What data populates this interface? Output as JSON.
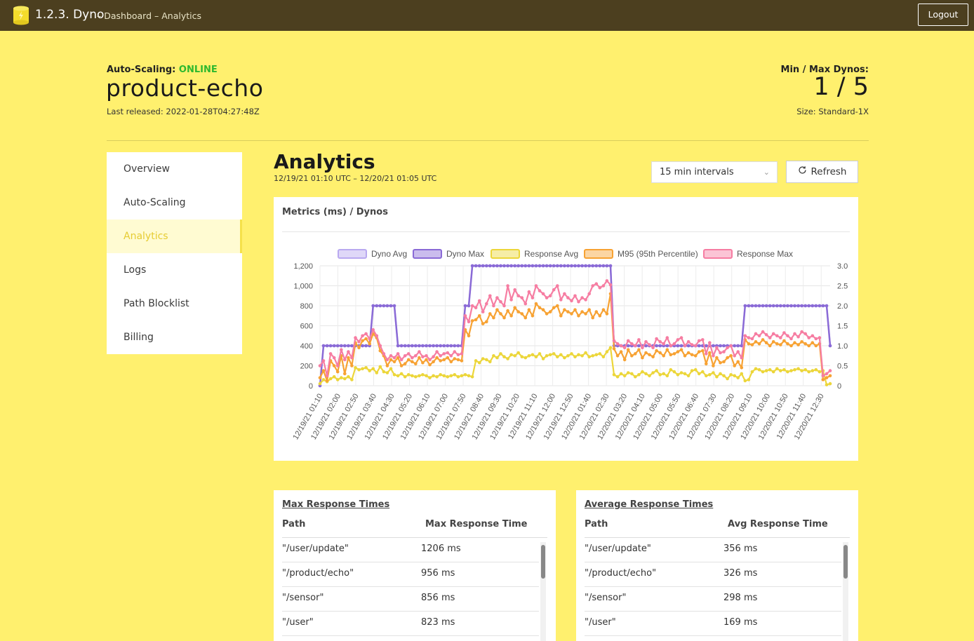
{
  "topbar": {
    "app_title": "1.2.3. Dyno",
    "breadcrumb": "– Dashboard – Analytics",
    "logout_label": "Logout"
  },
  "header": {
    "autoscaling_label": "Auto-Scaling:",
    "autoscaling_status": "ONLINE",
    "app_name": "product-echo",
    "last_released": "Last released: 2022-01-28T04:27:48Z",
    "dynos_label": "Min / Max Dynos:",
    "dynos_value": "1 / 5",
    "size": "Size: Standard-1X"
  },
  "sidebar": {
    "items": [
      {
        "label": "Overview"
      },
      {
        "label": "Auto-Scaling"
      },
      {
        "label": "Analytics"
      },
      {
        "label": "Logs"
      },
      {
        "label": "Path Blocklist"
      },
      {
        "label": "Billing"
      }
    ],
    "active": "Analytics"
  },
  "analytics": {
    "title": "Analytics",
    "range": "12/19/21 01:10 UTC  –  12/20/21 01:05 UTC",
    "interval_select": "15 min intervals",
    "refresh_label": "Refresh"
  },
  "chart_title": "Metrics (ms) / Dynos",
  "chart_data": {
    "type": "line",
    "x_tick_labels": [
      "12/19/21 01:10",
      "12/19/21 02:00",
      "12/19/21 02:50",
      "12/19/21 03:40",
      "12/19/21 04:30",
      "12/19/21 05:20",
      "12/19/21 06:10",
      "12/19/21 07:00",
      "12/19/21 07:50",
      "12/19/21 08:40",
      "12/19/21 09:30",
      "12/19/21 10:20",
      "12/19/21 11:10",
      "12/19/21 12:00",
      "12/19/21 12:50",
      "12/20/21 01:40",
      "12/20/21 02:30",
      "12/20/21 03:20",
      "12/20/21 04:10",
      "12/20/21 05:00",
      "12/20/21 05:50",
      "12/20/21 06:40",
      "12/20/21 07:30",
      "12/20/21 08:20",
      "12/20/21 09:10",
      "12/20/21 10:00",
      "12/20/21 10:50",
      "12/20/21 11:40",
      "12/20/21 12:30"
    ],
    "y_left": {
      "min": 0,
      "max": 1200,
      "ticks": [
        "0",
        "200",
        "400",
        "600",
        "800",
        "1,000",
        "1,200"
      ]
    },
    "y_right": {
      "min": 0,
      "max": 3.0,
      "ticks": [
        "0",
        "0.5",
        "1.0",
        "1.5",
        "2.0",
        "2.5",
        "3.0"
      ]
    },
    "series": [
      {
        "name": "Dyno Avg",
        "color": "#b9a9f0",
        "axis": "right",
        "values": [
          0,
          1,
          1,
          1,
          1,
          1,
          1,
          1,
          1,
          1,
          1,
          1,
          1,
          1,
          1,
          2,
          2,
          2,
          2,
          2,
          2,
          2,
          1,
          1,
          1,
          1,
          1,
          1,
          1,
          1,
          1,
          1,
          1,
          1,
          1,
          1,
          1,
          1,
          1,
          1,
          1,
          2,
          2,
          3,
          3,
          3,
          3,
          3,
          3,
          3,
          3,
          3,
          3,
          3,
          3,
          3,
          3,
          3,
          3,
          3,
          3,
          3,
          3,
          3,
          3,
          3,
          3,
          3,
          3,
          3,
          3,
          3,
          3,
          3,
          3,
          3,
          3,
          3,
          3,
          3,
          3,
          3,
          3,
          1,
          1,
          1,
          1,
          1,
          1,
          1,
          1,
          1,
          1,
          1,
          1,
          1,
          1,
          1,
          1,
          1,
          1,
          1,
          1,
          1,
          1,
          1,
          1,
          1,
          1,
          1,
          1,
          1,
          1,
          1,
          1,
          1,
          1,
          1,
          1,
          1,
          2,
          2,
          2,
          2,
          2,
          2,
          2,
          2,
          2,
          2,
          2,
          2,
          2,
          2,
          2,
          2,
          2,
          2,
          2,
          2,
          2,
          2,
          2,
          2,
          1
        ]
      },
      {
        "name": "Dyno Max",
        "color": "#8a6ad6",
        "axis": "right",
        "values": [
          0,
          1,
          1,
          1,
          1,
          1,
          1,
          1,
          1,
          1,
          1,
          1,
          1,
          1,
          1,
          2,
          2,
          2,
          2,
          2,
          2,
          2,
          1,
          1,
          1,
          1,
          1,
          1,
          1,
          1,
          1,
          1,
          1,
          1,
          1,
          1,
          1,
          1,
          1,
          1,
          1,
          2,
          2,
          3,
          3,
          3,
          3,
          3,
          3,
          3,
          3,
          3,
          3,
          3,
          3,
          3,
          3,
          3,
          3,
          3,
          3,
          3,
          3,
          3,
          3,
          3,
          3,
          3,
          3,
          3,
          3,
          3,
          3,
          3,
          3,
          3,
          3,
          3,
          3,
          3,
          3,
          3,
          3,
          1,
          1,
          1,
          1,
          1,
          1,
          1,
          1,
          1,
          1,
          1,
          1,
          1,
          1,
          1,
          1,
          1,
          1,
          1,
          1,
          1,
          1,
          1,
          1,
          1,
          1,
          1,
          1,
          1,
          1,
          1,
          1,
          1,
          1,
          1,
          1,
          1,
          2,
          2,
          2,
          2,
          2,
          2,
          2,
          2,
          2,
          2,
          2,
          2,
          2,
          2,
          2,
          2,
          2,
          2,
          2,
          2,
          2,
          2,
          2,
          2,
          1
        ]
      },
      {
        "name": "Response Avg",
        "color": "#ecd63a",
        "axis": "left",
        "values": [
          20,
          60,
          40,
          70,
          90,
          60,
          80,
          70,
          90,
          60,
          180,
          160,
          170,
          180,
          150,
          170,
          130,
          190,
          140,
          130,
          170,
          110,
          100,
          120,
          90,
          110,
          100,
          90,
          100,
          110,
          100,
          80,
          100,
          90,
          110,
          100,
          90,
          100,
          110,
          90,
          100,
          110,
          100,
          90,
          250,
          230,
          270,
          260,
          240,
          300,
          280,
          320,
          290,
          270,
          310,
          300,
          330,
          290,
          280,
          300,
          310,
          290,
          320,
          270,
          300,
          310,
          320,
          290,
          310,
          280,
          300,
          320,
          290,
          310,
          300,
          330,
          290,
          300,
          310,
          320,
          290,
          340,
          380,
          110,
          90,
          120,
          100,
          130,
          120,
          90,
          110,
          140,
          120,
          100,
          130,
          150,
          110,
          120,
          100,
          160,
          140,
          110,
          130,
          120,
          100,
          150,
          160,
          120,
          140,
          100,
          110,
          130,
          90,
          120,
          100,
          70,
          110,
          100,
          80,
          120,
          50,
          60,
          140,
          170,
          160,
          140,
          150,
          160,
          140,
          170,
          150,
          160,
          140,
          150,
          160,
          170,
          150,
          160,
          140,
          150,
          160,
          140,
          150,
          10,
          20
        ]
      },
      {
        "name": "M95 (95th Percentile)",
        "color": "#f7a233",
        "axis": "left",
        "values": [
          80,
          150,
          50,
          250,
          200,
          140,
          300,
          120,
          280,
          200,
          430,
          380,
          450,
          470,
          420,
          520,
          480,
          350,
          300,
          200,
          260,
          240,
          280,
          200,
          220,
          260,
          240,
          220,
          280,
          230,
          260,
          210,
          240,
          280,
          250,
          260,
          280,
          240,
          270,
          260,
          250,
          560,
          500,
          650,
          660,
          700,
          620,
          640,
          720,
          680,
          760,
          720,
          680,
          750,
          700,
          780,
          740,
          720,
          680,
          760,
          700,
          820,
          780,
          760,
          720,
          740,
          780,
          800,
          700,
          760,
          740,
          720,
          760,
          700,
          740,
          720,
          760,
          680,
          740,
          700,
          760,
          720,
          920,
          370,
          300,
          340,
          260,
          360,
          300,
          320,
          360,
          280,
          330,
          310,
          290,
          350,
          330,
          300,
          360,
          310,
          320,
          340,
          360,
          300,
          330,
          310,
          300,
          340,
          350,
          220,
          330,
          200,
          280,
          230,
          240,
          280,
          300,
          200,
          240,
          180,
          460,
          420,
          410,
          440,
          420,
          460,
          430,
          400,
          440,
          420,
          410,
          450,
          420,
          400,
          430,
          410,
          440,
          420,
          400,
          430,
          400,
          420,
          60,
          80,
          100
        ]
      },
      {
        "name": "Response Max",
        "color": "#f67da2",
        "axis": "left",
        "values": [
          200,
          250,
          100,
          320,
          280,
          200,
          360,
          260,
          340,
          280,
          480,
          440,
          500,
          520,
          470,
          560,
          500,
          400,
          320,
          260,
          300,
          280,
          320,
          260,
          300,
          320,
          280,
          300,
          340,
          290,
          300,
          260,
          290,
          340,
          300,
          320,
          330,
          300,
          340,
          310,
          320,
          700,
          640,
          800,
          780,
          850,
          740,
          820,
          900,
          800,
          880,
          840,
          800,
          1000,
          860,
          960,
          900,
          880,
          820,
          940,
          880,
          1000,
          950,
          920,
          880,
          900,
          960,
          1000,
          860,
          920,
          880,
          850,
          900,
          840,
          880,
          860,
          920,
          1000,
          1020,
          980,
          1000,
          1050,
          1010,
          450,
          420,
          400,
          380,
          450,
          420,
          400,
          460,
          380,
          440,
          410,
          380,
          470,
          440,
          420,
          480,
          400,
          420,
          460,
          480,
          400,
          440,
          410,
          400,
          450,
          460,
          320,
          430,
          300,
          380,
          330,
          340,
          380,
          400,
          300,
          340,
          280,
          500,
          480,
          470,
          520,
          500,
          540,
          510,
          480,
          520,
          500,
          480,
          530,
          500,
          470,
          520,
          490,
          540,
          520,
          480,
          500,
          470,
          480,
          100,
          120,
          150
        ]
      }
    ],
    "legend_position": "top",
    "grid": true
  },
  "tables": {
    "max": {
      "title": "Max Response Times",
      "col_path": "Path",
      "col_value": "Max Response Time",
      "rows": [
        {
          "path": "\"/user/update\"",
          "value": "1206 ms"
        },
        {
          "path": "\"/product/echo\"",
          "value": "956 ms"
        },
        {
          "path": "\"/sensor\"",
          "value": "856 ms"
        },
        {
          "path": "\"/user\"",
          "value": "823 ms"
        }
      ]
    },
    "avg": {
      "title": "Average Response Times",
      "col_path": "Path",
      "col_value": "Avg Response Time",
      "rows": [
        {
          "path": "\"/user/update\"",
          "value": "356 ms"
        },
        {
          "path": "\"/product/echo\"",
          "value": "326 ms"
        },
        {
          "path": "\"/sensor\"",
          "value": "298 ms"
        },
        {
          "path": "\"/user\"",
          "value": "169 ms"
        }
      ]
    }
  },
  "icons": {
    "logo": "dyno-cylinder-icon",
    "refresh": "refresh-icon",
    "select": "chevron-down-icon"
  }
}
